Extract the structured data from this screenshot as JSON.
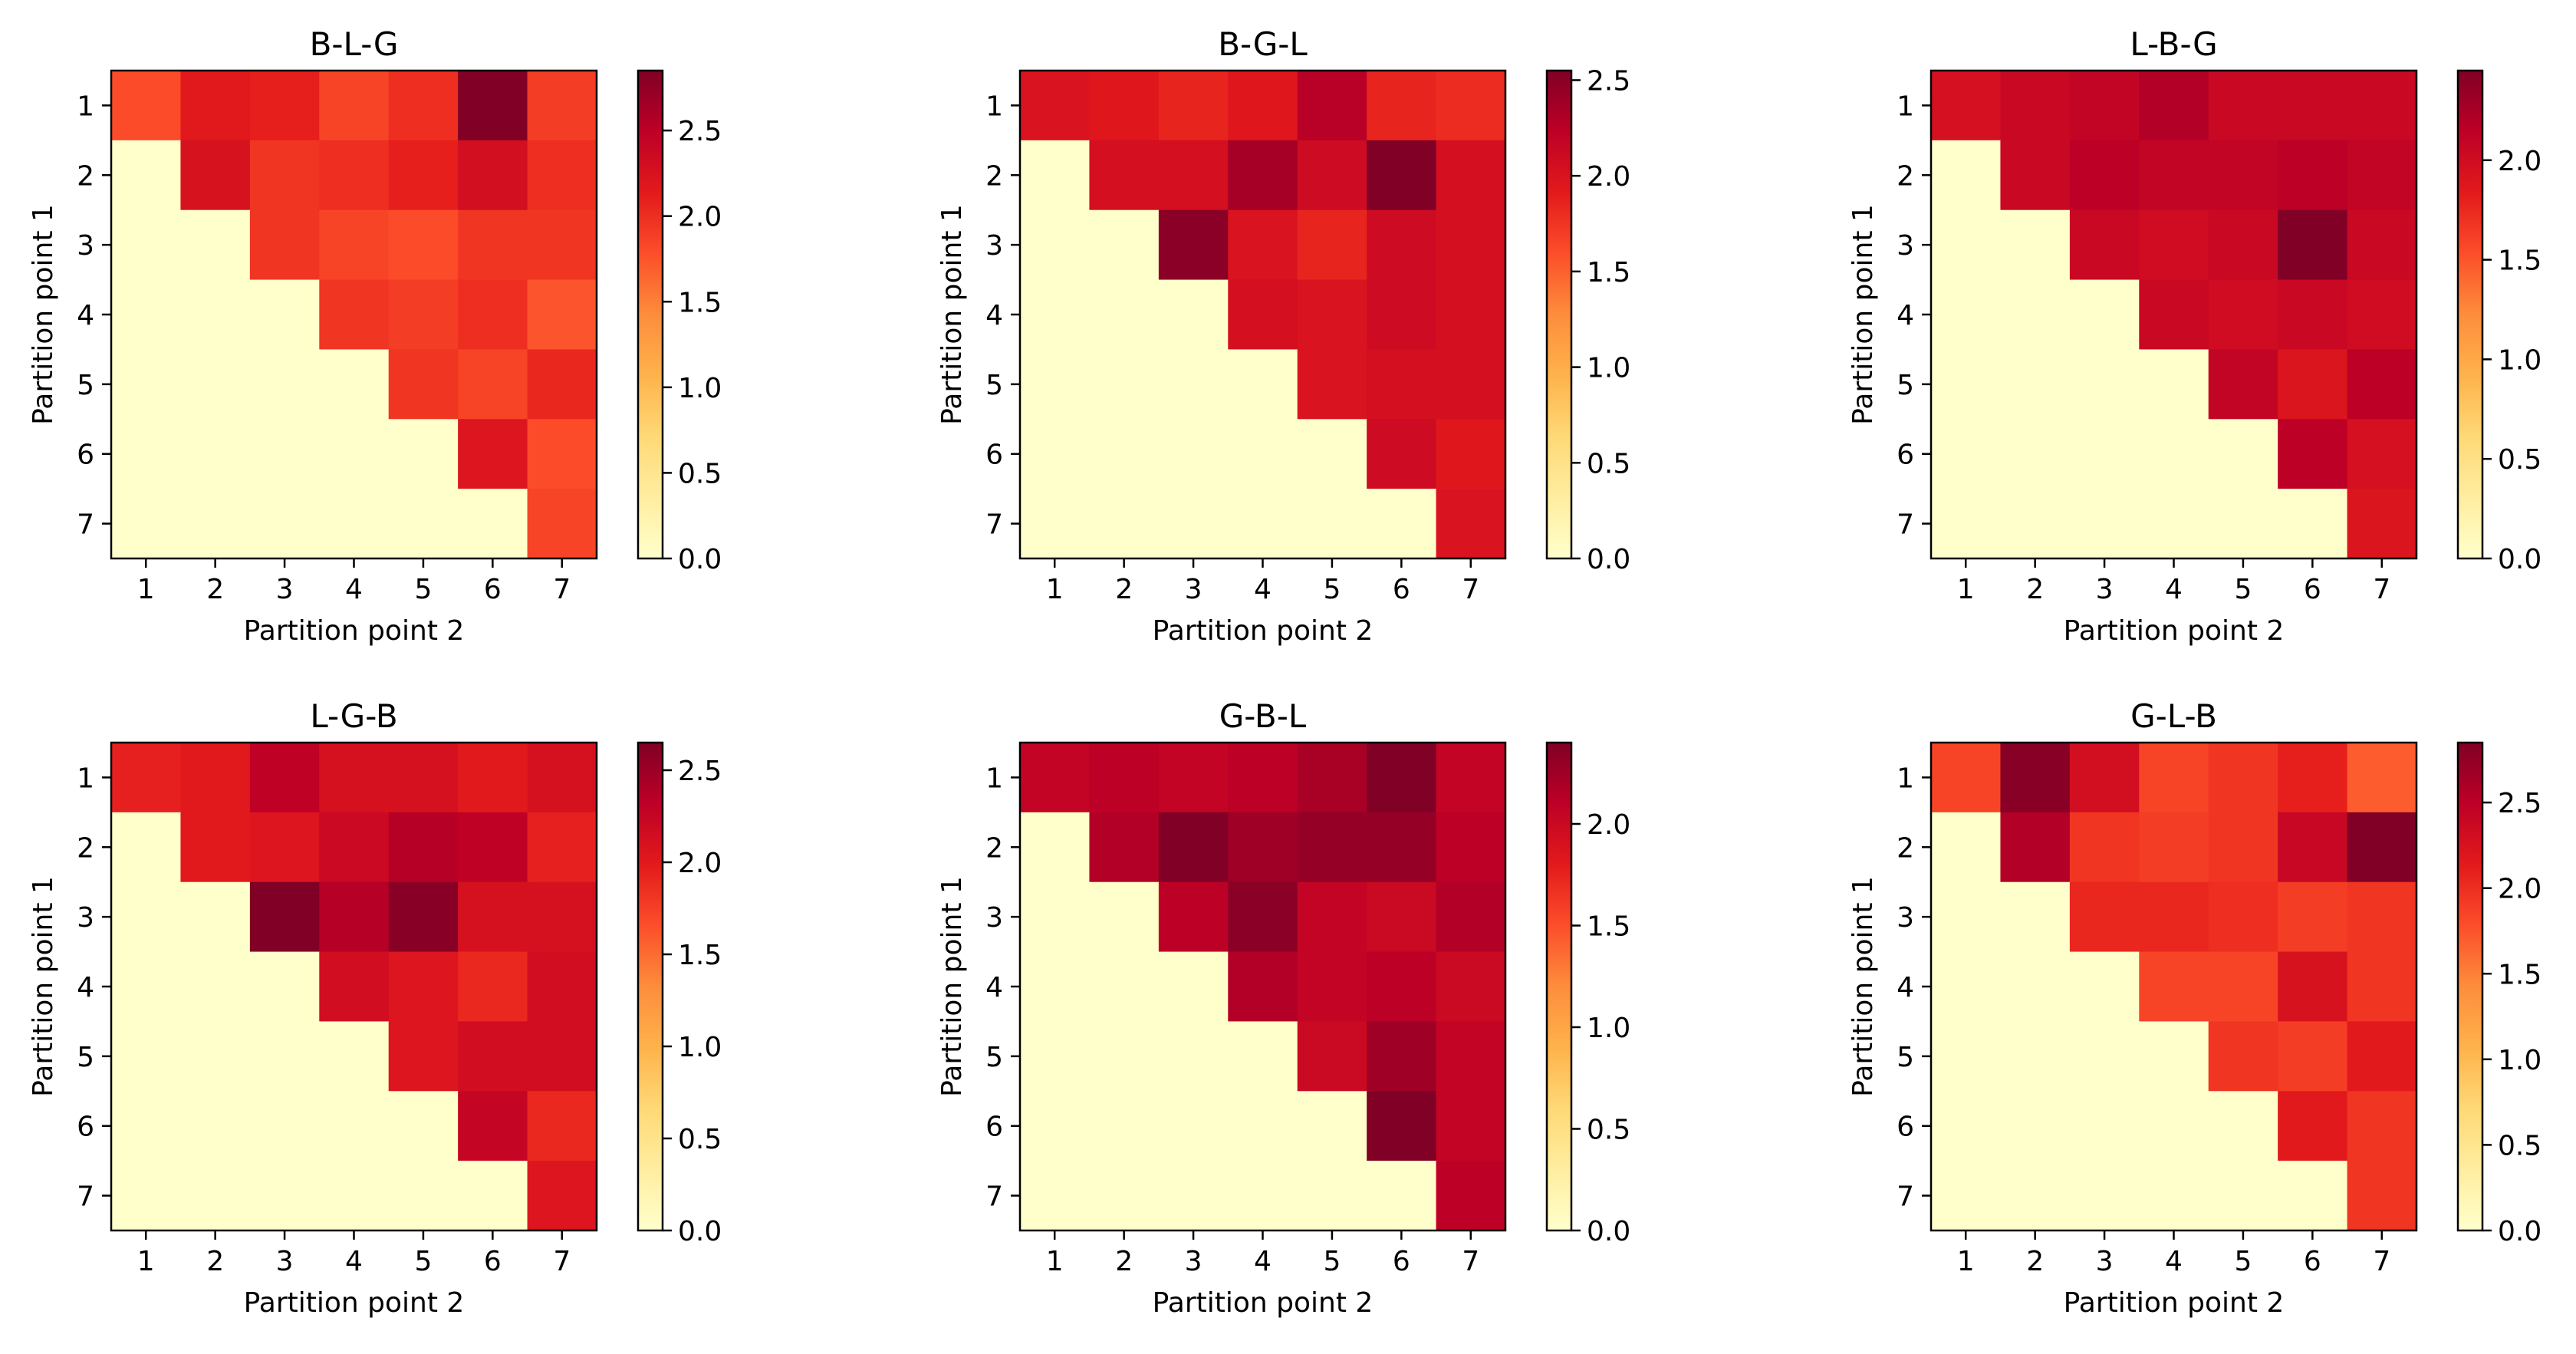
{
  "chart_data": [
    {
      "type": "heatmap",
      "title": "B-L-G",
      "xlabel": "Partition point 2",
      "ylabel": "Partition point 1",
      "x_ticks": [
        "1",
        "2",
        "3",
        "4",
        "5",
        "6",
        "7"
      ],
      "y_ticks": [
        "1",
        "2",
        "3",
        "4",
        "5",
        "6",
        "7"
      ],
      "colormap": "YlOrRd",
      "vmin": 0,
      "vmax": 2.85,
      "colorbar_ticks": [
        "0.0",
        "0.5",
        "1.0",
        "1.5",
        "2.0",
        "2.5"
      ],
      "values": [
        [
          1.8,
          2.15,
          2.1,
          1.85,
          2.0,
          2.85,
          1.9
        ],
        [
          0,
          2.25,
          1.95,
          2.0,
          2.1,
          2.3,
          2.0
        ],
        [
          0,
          0,
          1.95,
          1.85,
          1.8,
          1.95,
          1.95
        ],
        [
          0,
          0,
          0,
          1.95,
          1.9,
          2.0,
          1.75
        ],
        [
          0,
          0,
          0,
          0,
          1.95,
          1.85,
          2.05
        ],
        [
          0,
          0,
          0,
          0,
          0,
          2.2,
          1.8
        ],
        [
          0,
          0,
          0,
          0,
          0,
          0,
          1.85
        ]
      ]
    },
    {
      "type": "heatmap",
      "title": "B-G-L",
      "xlabel": "Partition point 2",
      "ylabel": "Partition point 1",
      "x_ticks": [
        "1",
        "2",
        "3",
        "4",
        "5",
        "6",
        "7"
      ],
      "y_ticks": [
        "1",
        "2",
        "3",
        "4",
        "5",
        "6",
        "7"
      ],
      "colormap": "YlOrRd",
      "vmin": 0,
      "vmax": 2.55,
      "colorbar_ticks": [
        "0.0",
        "0.5",
        "1.0",
        "1.5",
        "2.0",
        "2.5"
      ],
      "values": [
        [
          2.0,
          1.95,
          1.85,
          1.95,
          2.25,
          1.85,
          1.8
        ],
        [
          0,
          2.05,
          2.05,
          2.35,
          2.1,
          2.55,
          2.05
        ],
        [
          0,
          0,
          2.5,
          2.0,
          1.85,
          2.1,
          2.05
        ],
        [
          0,
          0,
          0,
          2.05,
          2.0,
          2.1,
          2.05
        ],
        [
          0,
          0,
          0,
          0,
          2.0,
          2.05,
          2.05
        ],
        [
          0,
          0,
          0,
          0,
          0,
          2.1,
          1.95
        ],
        [
          0,
          0,
          0,
          0,
          0,
          0,
          2.0
        ]
      ]
    },
    {
      "type": "heatmap",
      "title": "L-B-G",
      "xlabel": "Partition point 2",
      "ylabel": "Partition point 1",
      "x_ticks": [
        "1",
        "2",
        "3",
        "4",
        "5",
        "6",
        "7"
      ],
      "y_ticks": [
        "1",
        "2",
        "3",
        "4",
        "5",
        "6",
        "7"
      ],
      "colormap": "YlOrRd",
      "vmin": 0,
      "vmax": 2.45,
      "colorbar_ticks": [
        "0.0",
        "0.5",
        "1.0",
        "1.5",
        "2.0"
      ],
      "values": [
        [
          1.95,
          2.05,
          2.1,
          2.2,
          2.05,
          2.05,
          2.05
        ],
        [
          0,
          2.05,
          2.15,
          2.1,
          2.1,
          2.15,
          2.1
        ],
        [
          0,
          0,
          2.05,
          2.0,
          2.05,
          2.45,
          2.05
        ],
        [
          0,
          0,
          0,
          2.05,
          2.0,
          2.05,
          2.0
        ],
        [
          0,
          0,
          0,
          0,
          2.1,
          1.9,
          2.15
        ],
        [
          0,
          0,
          0,
          0,
          0,
          2.15,
          1.95
        ],
        [
          0,
          0,
          0,
          0,
          0,
          0,
          1.9
        ]
      ]
    },
    {
      "type": "heatmap",
      "title": "L-G-B",
      "xlabel": "Partition point 2",
      "ylabel": "Partition point 1",
      "x_ticks": [
        "1",
        "2",
        "3",
        "4",
        "5",
        "6",
        "7"
      ],
      "y_ticks": [
        "1",
        "2",
        "3",
        "4",
        "5",
        "6",
        "7"
      ],
      "colormap": "YlOrRd",
      "vmin": 0,
      "vmax": 2.65,
      "colorbar_ticks": [
        "0.0",
        "0.5",
        "1.0",
        "1.5",
        "2.0",
        "2.5"
      ],
      "values": [
        [
          1.95,
          2.0,
          2.3,
          2.1,
          2.1,
          2.0,
          2.1
        ],
        [
          0,
          2.0,
          2.05,
          2.2,
          2.35,
          2.3,
          1.95
        ],
        [
          0,
          0,
          2.65,
          2.35,
          2.6,
          2.1,
          2.1
        ],
        [
          0,
          0,
          0,
          2.15,
          2.05,
          1.9,
          2.15
        ],
        [
          0,
          0,
          0,
          0,
          2.05,
          2.15,
          2.15
        ],
        [
          0,
          0,
          0,
          0,
          0,
          2.25,
          1.9
        ],
        [
          0,
          0,
          0,
          0,
          0,
          0,
          2.05
        ]
      ]
    },
    {
      "type": "heatmap",
      "title": "G-B-L",
      "xlabel": "Partition point 2",
      "ylabel": "Partition point 1",
      "x_ticks": [
        "1",
        "2",
        "3",
        "4",
        "5",
        "6",
        "7"
      ],
      "y_ticks": [
        "1",
        "2",
        "3",
        "4",
        "5",
        "6",
        "7"
      ],
      "colormap": "YlOrRd",
      "vmin": 0,
      "vmax": 2.4,
      "colorbar_ticks": [
        "0.0",
        "0.5",
        "1.0",
        "1.5",
        "2.0"
      ],
      "values": [
        [
          2.05,
          2.1,
          2.05,
          2.1,
          2.2,
          2.4,
          2.05
        ],
        [
          0,
          2.15,
          2.4,
          2.25,
          2.3,
          2.3,
          2.1
        ],
        [
          0,
          0,
          2.1,
          2.35,
          2.05,
          2.0,
          2.15
        ],
        [
          0,
          0,
          0,
          2.15,
          2.05,
          2.1,
          2.0
        ],
        [
          0,
          0,
          0,
          0,
          2.0,
          2.25,
          2.05
        ],
        [
          0,
          0,
          0,
          0,
          0,
          2.4,
          2.05
        ],
        [
          0,
          0,
          0,
          0,
          0,
          0,
          2.1
        ]
      ]
    },
    {
      "type": "heatmap",
      "title": "G-L-B",
      "xlabel": "Partition point 2",
      "ylabel": "Partition point 1",
      "x_ticks": [
        "1",
        "2",
        "3",
        "4",
        "5",
        "6",
        "7"
      ],
      "y_ticks": [
        "1",
        "2",
        "3",
        "4",
        "5",
        "6",
        "7"
      ],
      "colormap": "YlOrRd",
      "vmin": 0,
      "vmax": 2.85,
      "colorbar_ticks": [
        "0.0",
        "0.5",
        "1.0",
        "1.5",
        "2.0",
        "2.5"
      ],
      "values": [
        [
          1.85,
          2.8,
          2.3,
          1.85,
          1.95,
          2.1,
          1.7
        ],
        [
          0,
          2.55,
          1.95,
          1.9,
          1.95,
          2.4,
          2.85
        ],
        [
          0,
          0,
          2.05,
          2.05,
          2.0,
          1.9,
          1.95
        ],
        [
          0,
          0,
          0,
          1.85,
          1.85,
          2.25,
          1.95
        ],
        [
          0,
          0,
          0,
          0,
          1.95,
          1.9,
          2.15
        ],
        [
          0,
          0,
          0,
          0,
          0,
          2.15,
          1.95
        ],
        [
          0,
          0,
          0,
          0,
          0,
          0,
          1.95
        ]
      ]
    }
  ]
}
